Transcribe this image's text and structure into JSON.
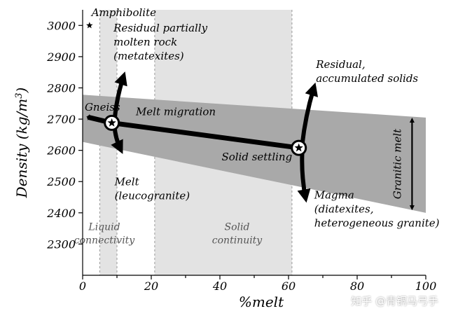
{
  "chart_data": {
    "type": "line",
    "xlabel": "%melt",
    "ylabel": "Density (kg/m",
    "ylabel_sup": "3",
    "ylabel_close": ")",
    "xlim": [
      0,
      100
    ],
    "ylim": [
      2200,
      3050
    ],
    "x_ticks": [
      0,
      20,
      40,
      60,
      80,
      100
    ],
    "y_ticks": [
      2300,
      2400,
      2500,
      2600,
      2700,
      2800,
      2900,
      3000
    ],
    "grid": false,
    "colors": {
      "band": "#a9a9a9",
      "zone": "#e3e3e3",
      "path": "#000000"
    },
    "zones": [
      {
        "name": "Liquid connectivity",
        "label_lines": [
          "Liquid",
          "connectivity"
        ],
        "x_range": [
          5,
          10
        ]
      },
      {
        "name": "Solid continuity",
        "label_lines": [
          "Solid",
          "continuity"
        ],
        "x_range": [
          21,
          61
        ]
      }
    ],
    "band": {
      "upper": [
        [
          0,
          2778
        ],
        [
          100,
          2705
        ]
      ],
      "lower": [
        [
          0,
          2627
        ],
        [
          100,
          2400
        ]
      ]
    },
    "path": {
      "points": [
        [
          2,
          2705
        ],
        [
          8.5,
          2688
        ],
        [
          63,
          2608
        ]
      ]
    },
    "points": [
      {
        "name": "Amphibolite",
        "x": 2,
        "y": 3000
      },
      {
        "name": "Gneiss",
        "x": 2,
        "y": 2705
      }
    ],
    "nodes": [
      {
        "name": "Melt migration",
        "x": 8.5,
        "y": 2688
      },
      {
        "name": "Solid settling",
        "x": 63,
        "y": 2608
      }
    ],
    "arrows": [
      {
        "from": [
          9.3,
          2695
        ],
        "to": [
          12,
          2840
        ]
      },
      {
        "from": [
          9.3,
          2680
        ],
        "to": [
          11.2,
          2600
        ]
      },
      {
        "from": [
          64,
          2620
        ],
        "to": [
          67.5,
          2805
        ]
      },
      {
        "from": [
          64,
          2596
        ],
        "to": [
          65,
          2445
        ]
      }
    ],
    "double_arrow": {
      "x": 96,
      "y1": 2413,
      "y2": 2700,
      "label": "Granitic melt"
    },
    "annotations": [
      {
        "lines": [
          "Amphibolite"
        ],
        "x": 2.6,
        "y": 3030
      },
      {
        "lines": [
          "Residual partially",
          "molten rock",
          "(metatexites)"
        ],
        "x": 9,
        "y": 2980
      },
      {
        "lines": [
          "Gneiss"
        ],
        "x": 0.6,
        "y": 2727
      },
      {
        "lines": [
          "Melt migration"
        ],
        "x": 15.5,
        "y": 2712
      },
      {
        "lines": [
          "Residual,",
          "accumulated solids"
        ],
        "x": 68,
        "y": 2864
      },
      {
        "lines": [
          "Solid settling"
        ],
        "x": 40.5,
        "y": 2568
      },
      {
        "lines": [
          "Melt",
          "(leucogranite)"
        ],
        "x": 9.3,
        "y": 2488
      },
      {
        "lines": [
          "Magma",
          "(diatexites,",
          "heterogeneous granite)"
        ],
        "x": 67.5,
        "y": 2446
      }
    ]
  },
  "watermark": "知乎 @青铜马弓手"
}
